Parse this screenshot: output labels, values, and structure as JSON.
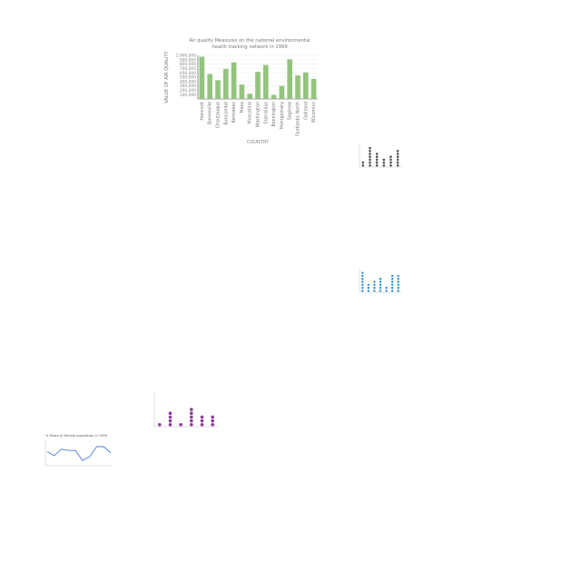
{
  "chart_data": [
    {
      "type": "bar",
      "title": "Air quality Measures on the national environmental health tracking network in 1999",
      "title_lines": [
        "Air quality Measures on the national environmental",
        "health tracking network in 1999"
      ],
      "xlabel": "COUNTRY",
      "ylabel": "VALUE OF AIR QUALITY",
      "ylim": [
        0,
        1000000
      ],
      "yticks": [
        "1,000,000",
        "900,000",
        "800,000",
        "700,000",
        "600,000",
        "500,000",
        "400,000",
        "300,000",
        "200,000",
        "100,000"
      ],
      "grid": true,
      "color": "#93c47d",
      "categories": [
        "Hancock",
        "Bonneville",
        "Chautauqua",
        "Buncombe",
        "Kennebec",
        "Mesa",
        "Muscatine",
        "Washington",
        "Stanislaus",
        "Bennington",
        "Montgomery",
        "Saginaw",
        "Fairbanks North",
        "Oakland",
        "Wicomico"
      ],
      "values": [
        970000,
        570000,
        430000,
        690000,
        840000,
        330000,
        120000,
        620000,
        780000,
        90000,
        300000,
        910000,
        540000,
        610000,
        460000
      ]
    },
    {
      "type": "scatter",
      "title": "",
      "color": "#555555",
      "categories": [
        "",
        "",
        "",
        "",
        "",
        ""
      ],
      "values": [
        2,
        7,
        5,
        3,
        4,
        6
      ]
    },
    {
      "type": "scatter",
      "title": "",
      "color": "#2b8fd1",
      "categories": [
        "",
        "",
        "",
        "",
        "",
        "",
        ""
      ],
      "values": [
        7,
        3,
        4,
        5,
        2,
        6,
        6
      ]
    },
    {
      "type": "scatter",
      "title": "",
      "color": "#8e3a99",
      "categories": [
        "",
        "",
        "",
        "",
        "",
        ""
      ],
      "values": [
        1,
        4,
        1,
        5,
        3,
        3
      ]
    },
    {
      "type": "line",
      "title": "% Share of female population in 1999",
      "xlabel": "",
      "ylabel": "",
      "color": "#4a7fd4",
      "categories": [
        "",
        "",
        "",
        "",
        "",
        "",
        "",
        "",
        "",
        ""
      ],
      "values": [
        50.6,
        50.3,
        50.8,
        50.7,
        50.7,
        49.9,
        50.2,
        51.0,
        51.0,
        50.5
      ],
      "ylim": [
        49.5,
        51.5
      ]
    }
  ]
}
